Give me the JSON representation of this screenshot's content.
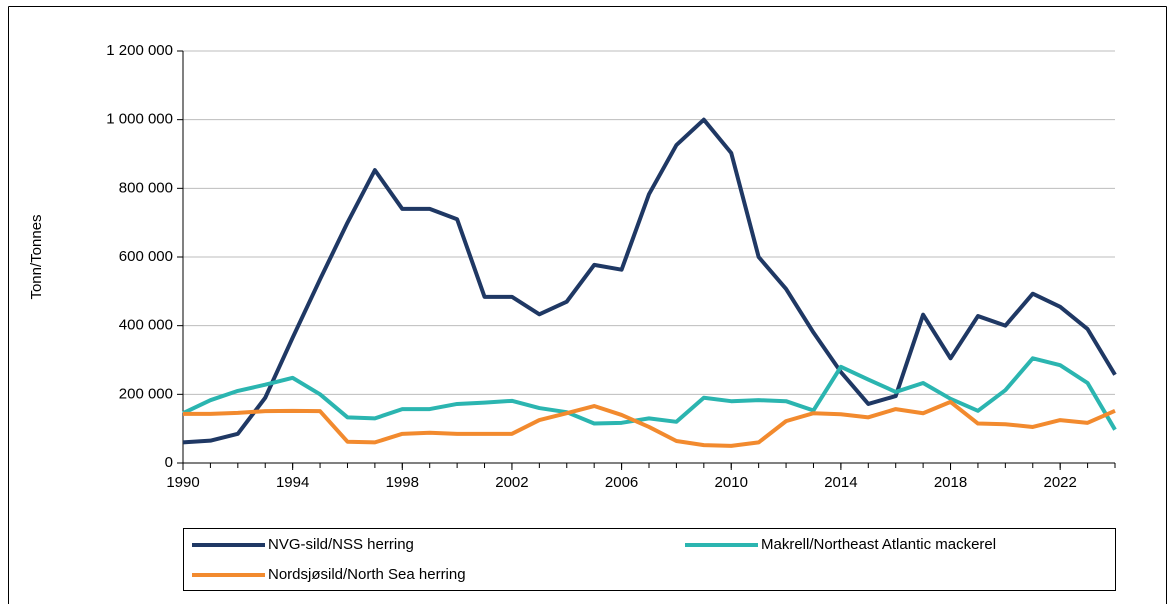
{
  "chart_data": {
    "type": "line",
    "y_label": "Tonn/Tonnes",
    "x": [
      1990,
      1991,
      1992,
      1993,
      1994,
      1995,
      1996,
      1997,
      1998,
      1999,
      2000,
      2001,
      2002,
      2003,
      2004,
      2005,
      2006,
      2007,
      2008,
      2009,
      2010,
      2011,
      2012,
      2013,
      2014,
      2015,
      2016,
      2017,
      2018,
      2019,
      2020,
      2021,
      2022,
      2023,
      2024
    ],
    "xlim": [
      1990,
      2024
    ],
    "xticks": [
      1990,
      1994,
      1998,
      2002,
      2006,
      2010,
      2014,
      2018,
      2022
    ],
    "ylim": [
      0,
      1200000
    ],
    "yticks": [
      0,
      {
        "value": 200000,
        "label": "200 000"
      },
      {
        "value": 400000,
        "label": "400 000"
      },
      {
        "value": 600000,
        "label": "600 000"
      },
      {
        "value": 800000,
        "label": "800 000"
      },
      {
        "value": 1000000,
        "label": "1 000 000"
      },
      {
        "value": 1200000,
        "label": "1 200 000"
      }
    ],
    "grid": true,
    "legend": "bottom",
    "series": [
      {
        "name": "NVG-sild/NSS herring",
        "color": "#1f3864",
        "values": [
          60000,
          65000,
          85000,
          190000,
          365000,
          535000,
          700000,
          853000,
          740000,
          740000,
          710000,
          484000,
          484000,
          433000,
          470000,
          577000,
          563000,
          783000,
          926000,
          1000000,
          903000,
          600000,
          507000,
          380000,
          265000,
          172000,
          195000,
          432000,
          305000,
          428000,
          400000,
          493000,
          455000,
          390000,
          257000
        ]
      },
      {
        "name": "Makrell/Northeast Atlantic mackerel",
        "color": "#2bb5b0",
        "values": [
          145000,
          183000,
          210000,
          228000,
          248000,
          200000,
          133000,
          130000,
          157000,
          157000,
          172000,
          176000,
          181000,
          160000,
          148000,
          115000,
          117000,
          130000,
          120000,
          190000,
          180000,
          183000,
          180000,
          153000,
          280000,
          243000,
          207000,
          233000,
          187000,
          152000,
          212000,
          305000,
          285000,
          233000,
          97000
        ]
      },
      {
        "name": "Nordsjøsild/North Sea herring",
        "color": "#f28a2e",
        "values": [
          143000,
          143000,
          146000,
          151000,
          152000,
          151000,
          62000,
          60000,
          85000,
          88000,
          85000,
          85000,
          85000,
          125000,
          145000,
          166000,
          140000,
          105000,
          64000,
          52000,
          50000,
          60000,
          122000,
          145000,
          142000,
          133000,
          157000,
          145000,
          178000,
          115000,
          113000,
          105000,
          125000,
          117000,
          152000
        ]
      }
    ]
  }
}
